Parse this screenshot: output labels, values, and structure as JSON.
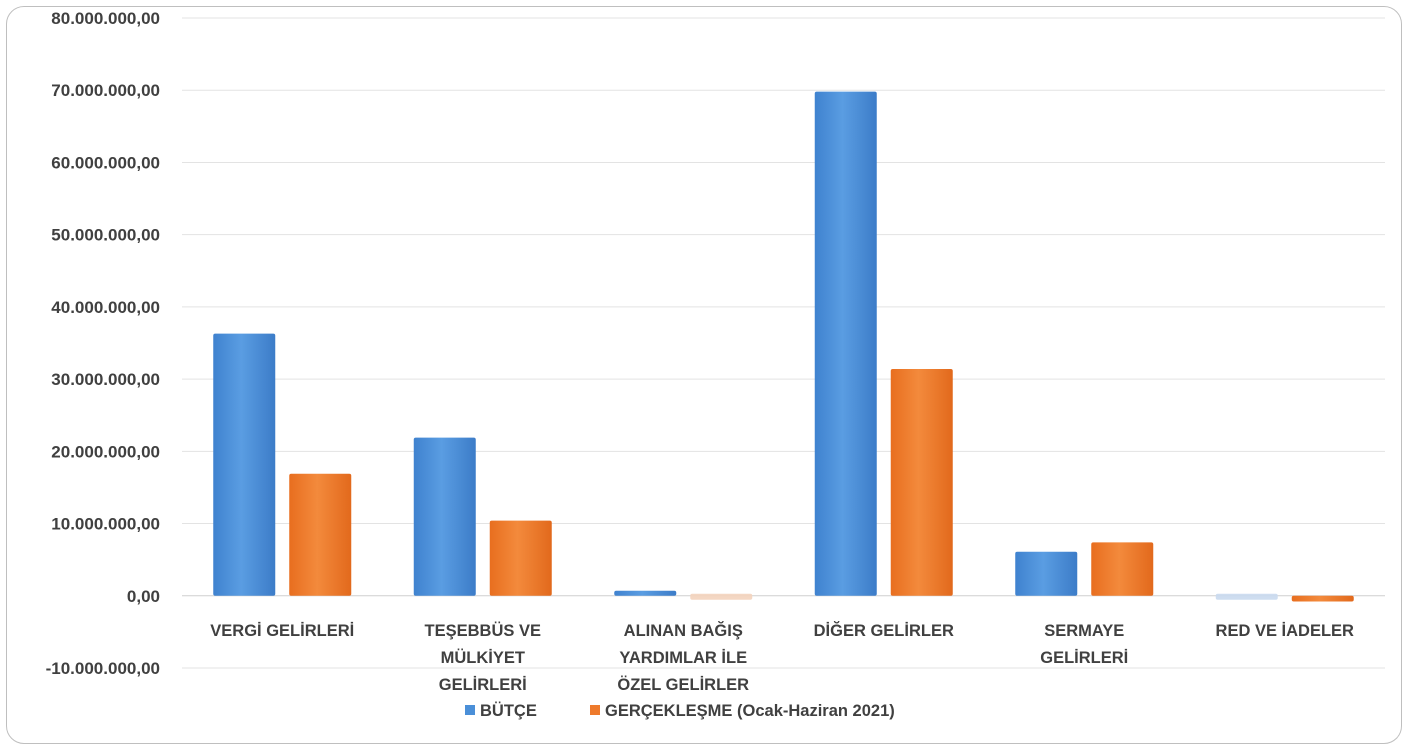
{
  "chart_data": {
    "type": "bar",
    "categories": [
      [
        "VERGİ GELİRLERİ"
      ],
      [
        "TEŞEBBÜS VE",
        "MÜLKİYET",
        "GELİRLERİ"
      ],
      [
        "ALINAN BAĞIŞ",
        "YARDIMLAR İLE",
        "ÖZEL GELİRLER"
      ],
      [
        "DİĞER GELİRLER"
      ],
      [
        "SERMAYE",
        "GELİRLERİ"
      ],
      [
        "RED VE İADELER"
      ]
    ],
    "series": [
      {
        "name": "BÜTÇE",
        "color": "#4a8fd8",
        "values": [
          36300000,
          21900000,
          700000,
          69800000,
          6100000,
          0
        ]
      },
      {
        "name": "GERÇEKLEŞME (Ocak-Haziran 2021)",
        "color": "#ee7a2c",
        "values": [
          16900000,
          10400000,
          0,
          31400000,
          7400000,
          -800000
        ]
      }
    ],
    "y_ticks": [
      {
        "value": 80000000,
        "label": "80.000.000,00"
      },
      {
        "value": 70000000,
        "label": "70.000.000,00"
      },
      {
        "value": 60000000,
        "label": "60.000.000,00"
      },
      {
        "value": 50000000,
        "label": "50.000.000,00"
      },
      {
        "value": 40000000,
        "label": "40.000.000,00"
      },
      {
        "value": 30000000,
        "label": "30.000.000,00"
      },
      {
        "value": 20000000,
        "label": "20.000.000,00"
      },
      {
        "value": 10000000,
        "label": "10.000.000,00"
      },
      {
        "value": 0,
        "label": "0,00"
      },
      {
        "value": -10000000,
        "label": "-10.000.000,00"
      }
    ],
    "ylim": [
      -10000000,
      80000000
    ],
    "title": "",
    "xlabel": "",
    "ylabel": "",
    "grid": true,
    "legend": "bottom"
  }
}
